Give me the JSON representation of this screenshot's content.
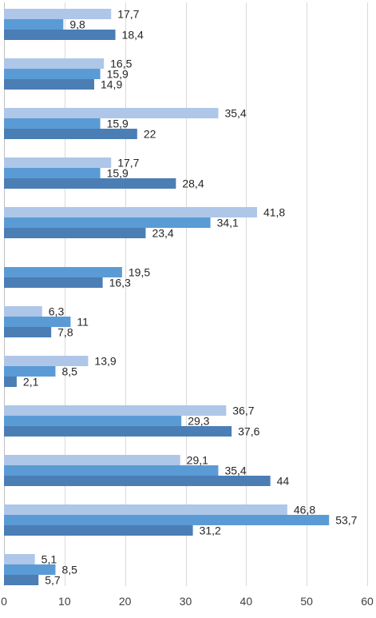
{
  "chart_data": {
    "type": "bar",
    "orientation": "horizontal",
    "xlim": [
      0,
      60
    ],
    "xticks": [
      0,
      10,
      20,
      30,
      40,
      50,
      60
    ],
    "grid": true,
    "colors": [
      "#aec6e8",
      "#5b9bd5",
      "#4a7eb5"
    ],
    "series": [
      {
        "name": "",
        "values": [
          17.7,
          16.5,
          35.4,
          17.7,
          41.8,
          null,
          6.3,
          13.9,
          36.7,
          29.1,
          46.8,
          5.1
        ]
      },
      {
        "name": "",
        "values": [
          9.8,
          15.9,
          15.9,
          15.9,
          34.1,
          19.5,
          11,
          8.5,
          29.3,
          35.4,
          53.7,
          8.5
        ]
      },
      {
        "name": "",
        "values": [
          18.4,
          14.9,
          22,
          28.4,
          23.4,
          16.3,
          7.8,
          2.1,
          37.6,
          44,
          31.2,
          5.7
        ]
      }
    ],
    "data_labels": [
      [
        "17,7",
        "16,5",
        "35,4",
        "17,7",
        "41,8",
        null,
        "6,3",
        "13,9",
        "36,7",
        "29,1",
        "46,8",
        "5,1"
      ],
      [
        "9,8",
        "15,9",
        "15,9",
        "15,9",
        "34,1",
        "19,5",
        "11",
        "8,5",
        "29,3",
        "35,4",
        "53,7",
        "8,5"
      ],
      [
        "18,4",
        "14,9",
        "22",
        "28,4",
        "23,4",
        "16,3",
        "7,8",
        "2,1",
        "37,6",
        "44",
        "31,2",
        "5,7"
      ]
    ]
  }
}
